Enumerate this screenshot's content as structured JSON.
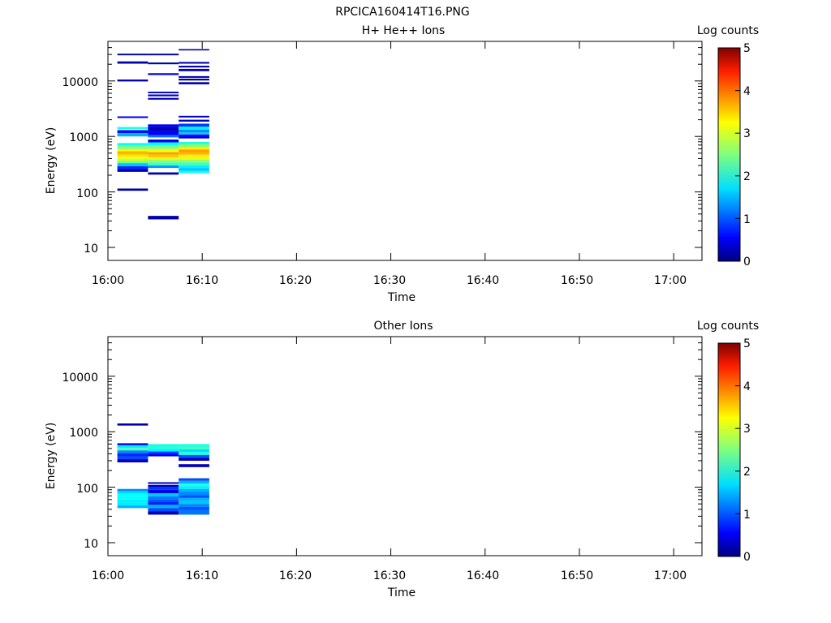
{
  "figure_title": "RPCICA160414T16.PNG",
  "chart_data": [
    {
      "type": "heatmap",
      "title": "H+ He++ Ions",
      "xlabel": "Time",
      "ylabel": "Energy (eV)",
      "x_ticks": [
        "16:00",
        "16:10",
        "16:20",
        "16:30",
        "16:40",
        "16:50",
        "17:00"
      ],
      "xlim": [
        "16:00",
        "17:03"
      ],
      "y_ticks": [
        "10",
        "100",
        "1000",
        "10000"
      ],
      "ylim": [
        6,
        45000
      ],
      "y_scale": "log",
      "colorbar": {
        "label": "Log counts",
        "range": [
          0,
          5
        ],
        "ticks": [
          "0",
          "1",
          "2",
          "3",
          "4",
          "5"
        ]
      },
      "columns": [
        {
          "t_start": "16:01",
          "t_end": "16:04:15",
          "cells": [
            {
              "e": [
                29000,
                31000
              ],
              "c": 0.2
            },
            {
              "e": [
                20500,
                22500
              ],
              "c": 0.2
            },
            {
              "e": [
                9800,
                10600
              ],
              "c": 0.2
            },
            {
              "e": [
                2150,
                2300
              ],
              "c": 0.6
            },
            {
              "e": [
                1350,
                1480
              ],
              "c": 2.0
            },
            {
              "e": [
                1150,
                1300
              ],
              "c": 0.7
            },
            {
              "e": [
                1000,
                1150
              ],
              "c": 1.5
            },
            {
              "e": [
                680,
                760
              ],
              "c": 1.9
            },
            {
              "e": [
                590,
                680
              ],
              "c": 2.5
            },
            {
              "e": [
                540,
                590
              ],
              "c": 3.1
            },
            {
              "e": [
                480,
                540
              ],
              "c": 3.5
            },
            {
              "e": [
                440,
                480
              ],
              "c": 3.3
            },
            {
              "e": [
                400,
                440
              ],
              "c": 3.1
            },
            {
              "e": [
                360,
                400
              ],
              "c": 2.9
            },
            {
              "e": [
                330,
                360
              ],
              "c": 2.4
            },
            {
              "e": [
                290,
                330
              ],
              "c": 1.6
            },
            {
              "e": [
                260,
                290
              ],
              "c": 0.8
            },
            {
              "e": [
                230,
                260
              ],
              "c": 0.2
            },
            {
              "e": [
                105,
                115
              ],
              "c": 0.2
            }
          ]
        },
        {
          "t_start": "16:04:15",
          "t_end": "16:07:30",
          "cells": [
            {
              "e": [
                29000,
                31000
              ],
              "c": 0.2
            },
            {
              "e": [
                20000,
                21500
              ],
              "c": 0.2
            },
            {
              "e": [
                12800,
                13800
              ],
              "c": 0.6
            },
            {
              "e": [
                6000,
                6400
              ],
              "c": 0.3
            },
            {
              "e": [
                5300,
                5700
              ],
              "c": 0.3
            },
            {
              "e": [
                4600,
                4950
              ],
              "c": 0.3
            },
            {
              "e": [
                1500,
                1650
              ],
              "c": 0.6
            },
            {
              "e": [
                1250,
                1500
              ],
              "c": 0.3
            },
            {
              "e": [
                1050,
                1250
              ],
              "c": 0.6
            },
            {
              "e": [
                960,
                1050
              ],
              "c": 1.2
            },
            {
              "e": [
                780,
                880
              ],
              "c": 0.6
            },
            {
              "e": [
                690,
                780
              ],
              "c": 1.9
            },
            {
              "e": [
                590,
                690
              ],
              "c": 2.5
            },
            {
              "e": [
                520,
                590
              ],
              "c": 3.1
            },
            {
              "e": [
                470,
                520
              ],
              "c": 3.6
            },
            {
              "e": [
                420,
                470
              ],
              "c": 3.4
            },
            {
              "e": [
                380,
                420
              ],
              "c": 3.0
            },
            {
              "e": [
                340,
                380
              ],
              "c": 2.6
            },
            {
              "e": [
                300,
                340
              ],
              "c": 2.2
            },
            {
              "e": [
                270,
                300
              ],
              "c": 1.4
            },
            {
              "e": [
                205,
                225
              ],
              "c": 0.2
            },
            {
              "e": [
                32,
                37
              ],
              "c": 0.2
            }
          ]
        },
        {
          "t_start": "16:07:30",
          "t_end": "16:10:45",
          "cells": [
            {
              "e": [
                35500,
                37500
              ],
              "c": 0.2
            },
            {
              "e": [
                20500,
                22000
              ],
              "c": 0.2
            },
            {
              "e": [
                17500,
                18800
              ],
              "c": 0.2
            },
            {
              "e": [
                15000,
                16500
              ],
              "c": 0.2
            },
            {
              "e": [
                11400,
                12200
              ],
              "c": 0.2
            },
            {
              "e": [
                10200,
                11000
              ],
              "c": 0.2
            },
            {
              "e": [
                8700,
                9500
              ],
              "c": 0.2
            },
            {
              "e": [
                2200,
                2350
              ],
              "c": 0.3
            },
            {
              "e": [
                1850,
                2000
              ],
              "c": 0.3
            },
            {
              "e": [
                1500,
                1700
              ],
              "c": 0.9
            },
            {
              "e": [
                1320,
                1500
              ],
              "c": 1.8
            },
            {
              "e": [
                1180,
                1320
              ],
              "c": 1.3
            },
            {
              "e": [
                1080,
                1180
              ],
              "c": 1.6
            },
            {
              "e": [
                920,
                1080
              ],
              "c": 0.6
            },
            {
              "e": [
                720,
                800
              ],
              "c": 2.0
            },
            {
              "e": [
                640,
                720
              ],
              "c": 2.6
            },
            {
              "e": [
                580,
                640
              ],
              "c": 3.2
            },
            {
              "e": [
                520,
                580
              ],
              "c": 3.6
            },
            {
              "e": [
                470,
                520
              ],
              "c": 3.5
            },
            {
              "e": [
                420,
                470
              ],
              "c": 3.2
            },
            {
              "e": [
                380,
                420
              ],
              "c": 3.0
            },
            {
              "e": [
                340,
                380
              ],
              "c": 2.6
            },
            {
              "e": [
                300,
                340
              ],
              "c": 2.2
            },
            {
              "e": [
                270,
                300
              ],
              "c": 1.8
            },
            {
              "e": [
                240,
                270
              ],
              "c": 1.6
            },
            {
              "e": [
                220,
                240
              ],
              "c": 1.9
            }
          ]
        }
      ]
    },
    {
      "type": "heatmap",
      "title": "Other Ions",
      "xlabel": "Time",
      "ylabel": "Energy (eV)",
      "x_ticks": [
        "16:00",
        "16:10",
        "16:20",
        "16:30",
        "16:40",
        "16:50",
        "17:00"
      ],
      "xlim": [
        "16:00",
        "17:03"
      ],
      "y_ticks": [
        "10",
        "100",
        "1000",
        "10000"
      ],
      "ylim": [
        6,
        45000
      ],
      "y_scale": "log",
      "colorbar": {
        "label": "Log counts",
        "range": [
          0,
          5
        ],
        "ticks": [
          "0",
          "1",
          "2",
          "3",
          "4",
          "5"
        ]
      },
      "columns": [
        {
          "t_start": "16:01",
          "t_end": "16:04:15",
          "cells": [
            {
              "e": [
                1290,
                1410
              ],
              "c": 0.2
            },
            {
              "e": [
                570,
                620
              ],
              "c": 0.6
            },
            {
              "e": [
                510,
                570
              ],
              "c": 1.8
            },
            {
              "e": [
                460,
                510
              ],
              "c": 2.2
            },
            {
              "e": [
                410,
                460
              ],
              "c": 1.3
            },
            {
              "e": [
                360,
                410
              ],
              "c": 0.8
            },
            {
              "e": [
                320,
                360
              ],
              "c": 1.0
            },
            {
              "e": [
                280,
                320
              ],
              "c": 0.3
            },
            {
              "e": [
                85,
                93
              ],
              "c": 1.3
            },
            {
              "e": [
                76,
                85
              ],
              "c": 1.7
            },
            {
              "e": [
                68,
                76
              ],
              "c": 1.9
            },
            {
              "e": [
                60,
                68
              ],
              "c": 1.9
            },
            {
              "e": [
                53,
                60
              ],
              "c": 1.8
            },
            {
              "e": [
                47,
                53
              ],
              "c": 1.8
            },
            {
              "e": [
                42,
                47
              ],
              "c": 1.5
            }
          ]
        },
        {
          "t_start": "16:04:15",
          "t_end": "16:07:30",
          "cells": [
            {
              "e": [
                540,
                600
              ],
              "c": 2.0
            },
            {
              "e": [
                490,
                540
              ],
              "c": 2.1
            },
            {
              "e": [
                440,
                490
              ],
              "c": 1.8
            },
            {
              "e": [
                400,
                440
              ],
              "c": 0.9
            },
            {
              "e": [
                360,
                400
              ],
              "c": 0.6
            },
            {
              "e": [
                115,
                123
              ],
              "c": 0.3
            },
            {
              "e": [
                102,
                110
              ],
              "c": 0.3
            },
            {
              "e": [
                90,
                102
              ],
              "c": 0.9
            },
            {
              "e": [
                78,
                90
              ],
              "c": 0.5
            },
            {
              "e": [
                68,
                78
              ],
              "c": 1.6
            },
            {
              "e": [
                60,
                68
              ],
              "c": 1.2
            },
            {
              "e": [
                54,
                60
              ],
              "c": 1.0
            },
            {
              "e": [
                48,
                54
              ],
              "c": 0.8
            },
            {
              "e": [
                42,
                48
              ],
              "c": 1.5
            },
            {
              "e": [
                37,
                42
              ],
              "c": 1.0
            },
            {
              "e": [
                32,
                37
              ],
              "c": 0.3
            }
          ]
        },
        {
          "t_start": "16:07:30",
          "t_end": "16:10:45",
          "cells": [
            {
              "e": [
                540,
                600
              ],
              "c": 2.0
            },
            {
              "e": [
                480,
                540
              ],
              "c": 2.2
            },
            {
              "e": [
                430,
                480
              ],
              "c": 1.7
            },
            {
              "e": [
                380,
                430
              ],
              "c": 2.0
            },
            {
              "e": [
                340,
                380
              ],
              "c": 1.0
            },
            {
              "e": [
                300,
                340
              ],
              "c": 0.3
            },
            {
              "e": [
                230,
                260
              ],
              "c": 0.3
            },
            {
              "e": [
                130,
                145
              ],
              "c": 1.0
            },
            {
              "e": [
                116,
                130
              ],
              "c": 1.5
            },
            {
              "e": [
                104,
                116
              ],
              "c": 2.0
            },
            {
              "e": [
                93,
                104
              ],
              "c": 1.8
            },
            {
              "e": [
                82,
                93
              ],
              "c": 1.5
            },
            {
              "e": [
                72,
                82
              ],
              "c": 1.3
            },
            {
              "e": [
                64,
                72
              ],
              "c": 1.0
            },
            {
              "e": [
                56,
                64
              ],
              "c": 1.5
            },
            {
              "e": [
                50,
                56
              ],
              "c": 1.6
            },
            {
              "e": [
                44,
                50
              ],
              "c": 1.3
            },
            {
              "e": [
                39,
                44
              ],
              "c": 1.0
            },
            {
              "e": [
                32,
                39
              ],
              "c": 1.2
            }
          ]
        }
      ]
    }
  ]
}
